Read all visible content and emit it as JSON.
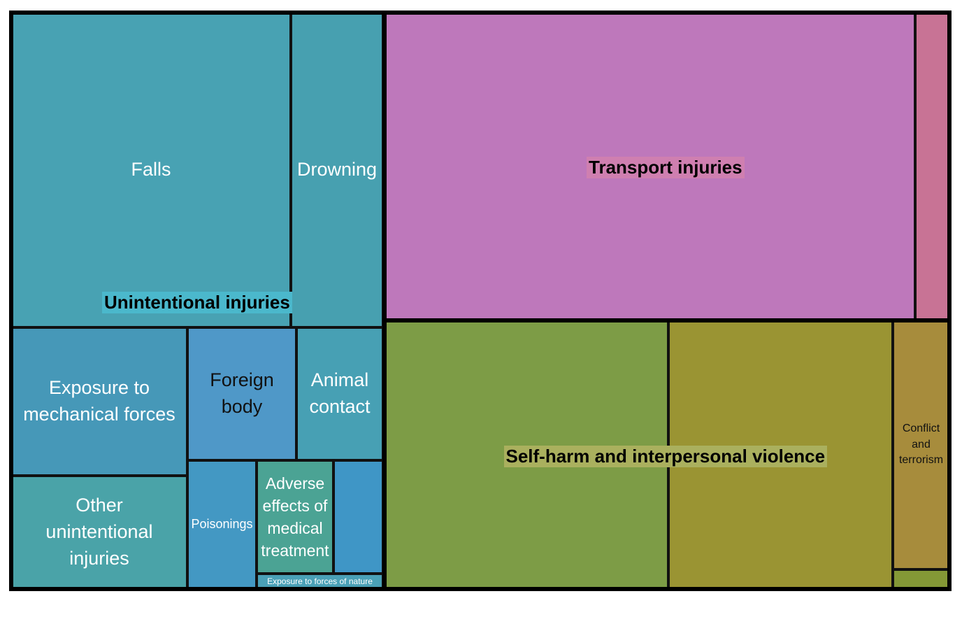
{
  "chart_data": {
    "type": "treemap",
    "groups": [
      {
        "name": "Unintentional injuries",
        "label_bg": "#4bb8cc",
        "children": [
          {
            "name": "Falls",
            "label": "Falls",
            "color": "#48a2b3"
          },
          {
            "name": "Drowning",
            "label": "Drowning",
            "color": "#47a0b0"
          },
          {
            "name": "Exposure to mechanical forces",
            "label": "Exposure to\nmechanical forces",
            "color": "#4698b8"
          },
          {
            "name": "Foreign body",
            "label": "Foreign\nbody",
            "color": "#4f98c8"
          },
          {
            "name": "Animal contact",
            "label": "Animal\ncontact",
            "color": "#47a0b4"
          },
          {
            "name": "Other unintentional injuries",
            "label": "Other\nunintentional\ninjuries",
            "color": "#4aa3a8"
          },
          {
            "name": "Poisonings",
            "label": "Poisonings",
            "color": "#4398c3"
          },
          {
            "name": "Adverse effects of medical treatment",
            "label": "Adverse\neffects of\nmedical\ntreatment",
            "color": "#4ba394"
          },
          {
            "name": "",
            "label": "",
            "color": "#3f96c6"
          },
          {
            "name": "Exposure to forces of nature",
            "label": "Exposure to forces of nature",
            "color": "#4aa0b6"
          }
        ]
      },
      {
        "name": "Transport injuries",
        "label_bg": "#cf7fb0",
        "children": [
          {
            "name": "",
            "label": "",
            "color": "#be78bb"
          },
          {
            "name": "",
            "label": "",
            "color": "#c87395"
          }
        ]
      },
      {
        "name": "Self-harm and interpersonal violence",
        "label_bg": "#aab05e",
        "children": [
          {
            "name": "",
            "label": "",
            "color": "#7d9c46"
          },
          {
            "name": "",
            "label": "",
            "color": "#9a9433"
          },
          {
            "name": "Conflict and terrorism",
            "label": "Conflict\nand\nterrorism",
            "color": "#a78c3c"
          },
          {
            "name": "",
            "label": "",
            "color": "#849836"
          }
        ]
      }
    ]
  }
}
